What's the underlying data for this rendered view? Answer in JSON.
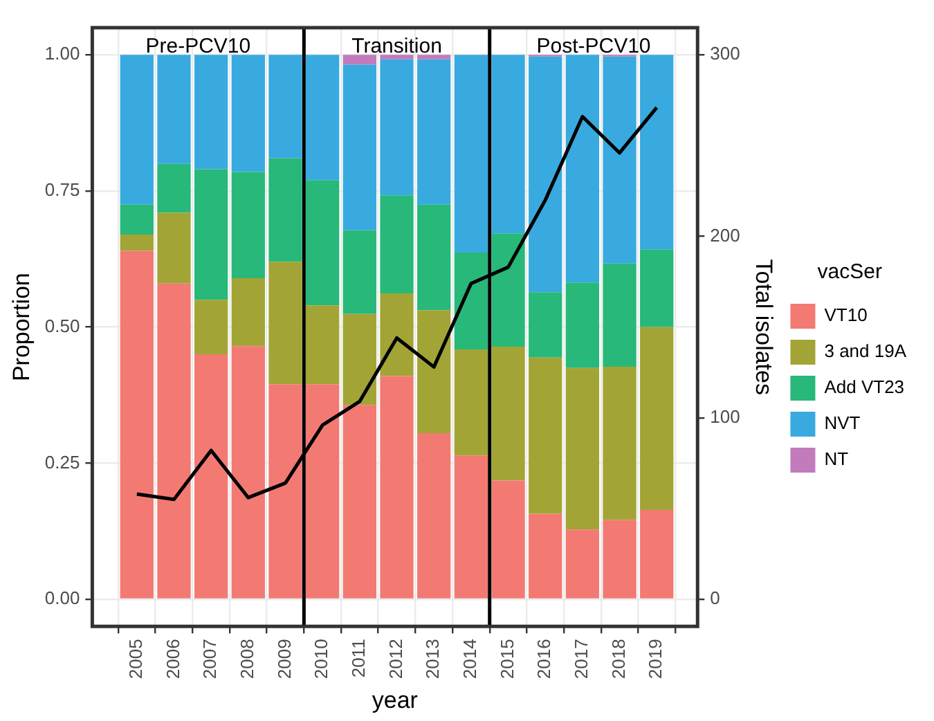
{
  "chart_data": {
    "type": "bar",
    "stacked": true,
    "xlabel": "year",
    "ylabel": "Proportion",
    "y2label": "Total isolates",
    "legend_title": "vacSer",
    "legend": "right",
    "grid": true,
    "x": [
      2005,
      2006,
      2007,
      2008,
      2009,
      2010,
      2011,
      2012,
      2013,
      2014,
      2015,
      2016,
      2017,
      2018,
      2019
    ],
    "xlim": [
      2003.8,
      2020.1
    ],
    "xticks": [
      2005,
      2006,
      2007,
      2008,
      2009,
      2010,
      2011,
      2012,
      2013,
      2014,
      2015,
      2016,
      2017,
      2018,
      2019
    ],
    "ylim": [
      -0.05,
      1.05
    ],
    "yticks": [
      {
        "value": 0,
        "label": "0.00"
      },
      {
        "value": 0.25,
        "label": "0.25"
      },
      {
        "value": 0.5,
        "label": "0.50"
      },
      {
        "value": 0.75,
        "label": "0.75"
      },
      {
        "value": 1,
        "label": "1.00"
      }
    ],
    "y2lim": [
      -15,
      315
    ],
    "y2ticks": [
      0,
      100,
      200,
      300
    ],
    "series": [
      {
        "name": "VT10",
        "color": "#f27a72",
        "values": [
          0.64,
          0.58,
          0.45,
          0.465,
          0.395,
          0.395,
          0.357,
          0.41,
          0.305,
          0.264,
          0.218,
          0.157,
          0.128,
          0.146,
          0.164
        ]
      },
      {
        "name": "3 and 19A",
        "color": "#a2a535",
        "values": [
          0.03,
          0.13,
          0.1,
          0.125,
          0.225,
          0.145,
          0.167,
          0.152,
          0.226,
          0.195,
          0.246,
          0.287,
          0.297,
          0.281,
          0.336
        ]
      },
      {
        "name": "Add VT23",
        "color": "#27b87a",
        "values": [
          0.055,
          0.09,
          0.24,
          0.195,
          0.19,
          0.23,
          0.154,
          0.18,
          0.194,
          0.178,
          0.208,
          0.12,
          0.157,
          0.19,
          0.143
        ]
      },
      {
        "name": "NVT",
        "color": "#39aae0",
        "values": [
          0.275,
          0.2,
          0.21,
          0.215,
          0.19,
          0.23,
          0.304,
          0.25,
          0.267,
          0.363,
          0.328,
          0.433,
          0.418,
          0.38,
          0.357
        ]
      },
      {
        "name": "NT",
        "color": "#c27bbb",
        "values": [
          0,
          0,
          0,
          0,
          0,
          0,
          0.018,
          0.008,
          0.008,
          0,
          0,
          0.003,
          0,
          0.003,
          0
        ]
      },
      {
        "type": "line",
        "axis": "y2",
        "color": "#000000",
        "marker": "none",
        "values": [
          58,
          55,
          82,
          56,
          64,
          96,
          109,
          144,
          128,
          174,
          183,
          220,
          266,
          246,
          271
        ]
      }
    ],
    "ref_lines": [
      {
        "axis": "x",
        "value": 2009.5,
        "color": "#000000"
      },
      {
        "axis": "x",
        "value": 2014.5,
        "color": "#000000"
      }
    ],
    "annotations": [
      "Pre-PCV10",
      "Transition",
      "Post-PCV10"
    ]
  }
}
